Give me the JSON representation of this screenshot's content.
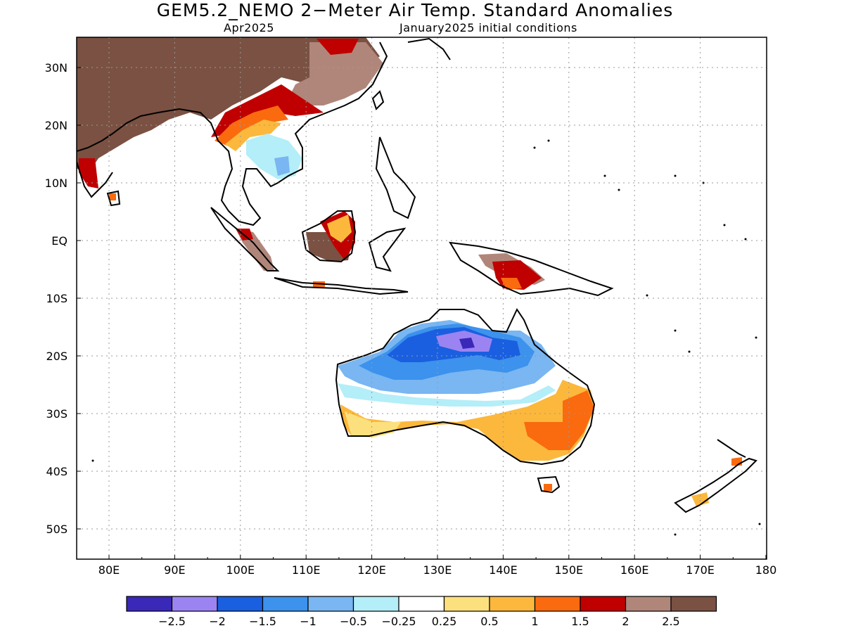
{
  "header": {
    "title": "GEM5.2_NEMO 2−Meter Air Temp. Standard Anomalies",
    "subtitle_left": "Apr2025",
    "subtitle_right": "January2025 initial conditions"
  },
  "axes": {
    "lon_labels": [
      "80E",
      "90E",
      "100E",
      "110E",
      "120E",
      "130E",
      "140E",
      "150E",
      "160E",
      "170E",
      "180"
    ],
    "lat_labels": [
      "30N",
      "20N",
      "10N",
      "EQ",
      "10S",
      "20S",
      "30S",
      "40S",
      "50S"
    ]
  },
  "colorbar": {
    "colors": [
      "#3a28b8",
      "#9b84f2",
      "#1a5fe0",
      "#3c92ec",
      "#79b6f2",
      "#b4eef8",
      "#ffffff",
      "#fde07e",
      "#fcb83c",
      "#fa6a0f",
      "#c00000",
      "#b0867a",
      "#7a5142"
    ],
    "labels": [
      "−2.5",
      "−2",
      "−1.5",
      "−1",
      "−0.5",
      "−0.25",
      "0.25",
      "0.5",
      "1",
      "1.5",
      "2",
      "2.5"
    ]
  },
  "legend_colors": {
    "strong_warm": "#7a5142",
    "warm_2": "#b0867a",
    "warm_1_5": "#c00000",
    "cold_2_5": "#3a28b8",
    "cold_2": "#9b84f2"
  }
}
